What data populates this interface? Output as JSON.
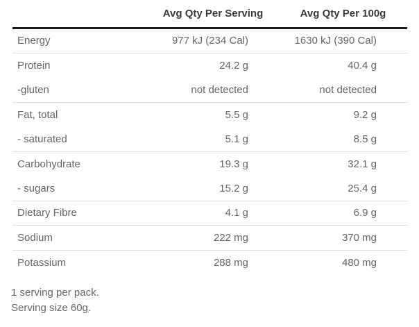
{
  "table": {
    "header": {
      "label_column": "",
      "per_serving": "Avg Qty Per Serving",
      "per_100g": "Avg Qty Per 100g"
    },
    "rows": [
      {
        "label": "Energy",
        "per_serving": "977 kJ (234 Cal)",
        "per_100g": "1630 kJ (390 Cal)",
        "divider_after": true
      },
      {
        "label": "Protein",
        "per_serving": "24.2 g",
        "per_100g": "40.4 g",
        "divider_after": false
      },
      {
        "label": "-gluten",
        "per_serving": "not detected",
        "per_100g": "not detected",
        "divider_after": true
      },
      {
        "label": "Fat, total",
        "per_serving": "5.5 g",
        "per_100g": "9.2 g",
        "divider_after": false
      },
      {
        "label": "- saturated",
        "per_serving": "5.1 g",
        "per_100g": "8.5 g",
        "divider_after": true
      },
      {
        "label": "Carbohydrate",
        "per_serving": "19.3 g",
        "per_100g": "32.1 g",
        "divider_after": false
      },
      {
        "label": "- sugars",
        "per_serving": "15.2 g",
        "per_100g": "25.4 g",
        "divider_after": true
      },
      {
        "label": "Dietary Fibre",
        "per_serving": "4.1 g",
        "per_100g": "6.9 g",
        "divider_after": true
      },
      {
        "label": "Sodium",
        "per_serving": "222 mg",
        "per_100g": "370 mg",
        "divider_after": true
      },
      {
        "label": "Potassium",
        "per_serving": "288 mg",
        "per_100g": "480 mg",
        "divider_after": false
      }
    ]
  },
  "footer": {
    "line1": "1 serving per pack.",
    "line2": "Serving size 60g."
  },
  "colors": {
    "background": "#ffffff",
    "header_text": "#3b3b3b",
    "body_text": "#666666",
    "divider": "#e0e0e0",
    "header_rule": "#1c1c1c"
  }
}
